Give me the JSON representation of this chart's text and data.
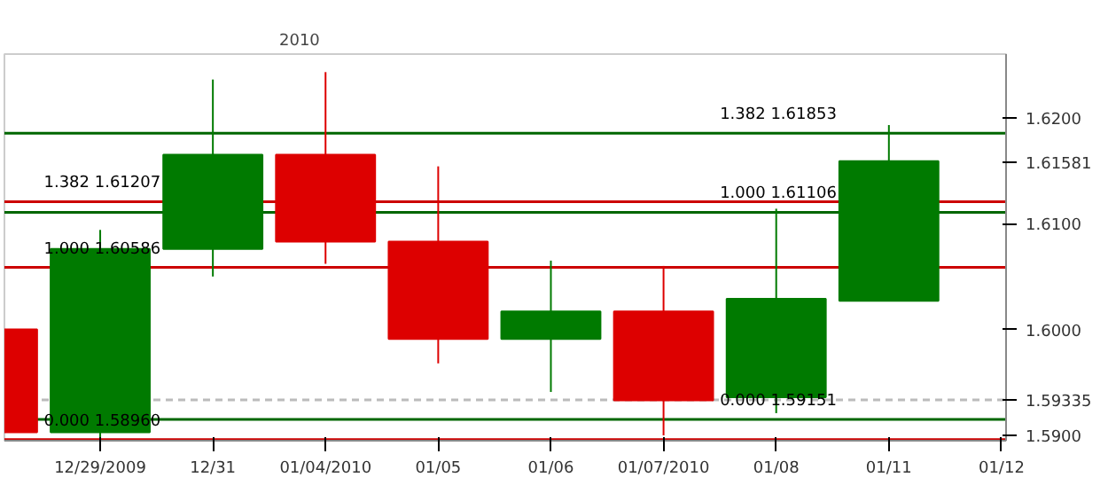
{
  "chart_data": {
    "type": "candlestick",
    "categories": [
      null,
      "12/29/2009",
      "12/31",
      "01/04/2010",
      "01/05",
      "01/06",
      "01/07/2010",
      "01/08",
      "01/11",
      "01/12"
    ],
    "ohlc": [
      [
        1.6,
        1.6,
        1.5903,
        1.5903
      ],
      [
        1.5903,
        1.6094,
        1.5896,
        1.6076
      ],
      [
        1.6076,
        1.6236,
        1.605,
        1.6165
      ],
      [
        1.6165,
        1.6243,
        1.6062,
        1.6083
      ],
      [
        1.6083,
        1.6154,
        1.5968,
        1.5991
      ],
      [
        1.5991,
        1.6065,
        1.5941,
        1.6017
      ],
      [
        1.6017,
        1.606,
        1.59,
        1.5933
      ],
      [
        1.5936,
        1.6114,
        1.5921,
        1.6029
      ],
      [
        1.6027,
        1.6193,
        1.6027,
        1.6159
      ],
      null
    ],
    "colors": [
      "#dd0000",
      "#007a00",
      "#007a00",
      "#dd0000",
      "#dd0000",
      "#007a00",
      "#dd0000",
      "#007a00",
      "#007a00",
      null
    ],
    "ylim": [
      1.5895,
      1.626
    ],
    "yticks": [
      {
        "value": 1.59,
        "label": "1.5900"
      },
      {
        "value": 1.59335,
        "label": "1.59335"
      },
      {
        "value": 1.6,
        "label": "1.6000"
      },
      {
        "value": 1.61,
        "label": "1.6100"
      },
      {
        "value": 1.61581,
        "label": "1.61581"
      },
      {
        "value": 1.62,
        "label": "1.6200"
      }
    ],
    "title": "2010",
    "ref_lines": [
      {
        "axis": "y",
        "value": 1.61207,
        "color": "#cc0000"
      },
      {
        "axis": "y",
        "value": 1.60586,
        "color": "#cc0000"
      },
      {
        "axis": "y",
        "value": 1.5896,
        "color": "#cc0000"
      },
      {
        "axis": "y",
        "value": 1.61853,
        "color": "#006600"
      },
      {
        "axis": "y",
        "value": 1.61106,
        "color": "#006600"
      },
      {
        "axis": "y",
        "value": 1.59151,
        "color": "#006600"
      },
      {
        "axis": "y",
        "value": 1.59335,
        "color": "#bbbbbb",
        "line_style": "dashed"
      }
    ],
    "annotations": [
      {
        "text": "1.382 1.61207",
        "x": "12/29/2009",
        "y": 1.61207
      },
      {
        "text": "1.000 1.60586",
        "x": "12/29/2009",
        "y": 1.60586
      },
      {
        "text": "0.000 1.58960",
        "x": "12/29/2009",
        "y": 1.5896
      },
      {
        "text": "1.382 1.61853",
        "x": "01/08",
        "y": 1.61853
      },
      {
        "text": "1.000 1.61106",
        "x": "01/08",
        "y": 1.61106
      },
      {
        "text": "0.000 1.59151",
        "x": "01/08",
        "y": 1.59151
      }
    ],
    "grid": false
  }
}
